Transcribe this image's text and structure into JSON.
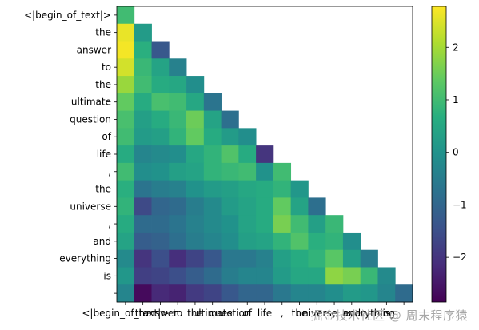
{
  "chart_data": {
    "type": "heatmap",
    "tokens": [
      "<|begin_of_text|>",
      "the",
      "answer",
      "to",
      "the",
      "ultimate",
      "question",
      "of",
      "life",
      ",",
      "the",
      "universe",
      ",",
      "and",
      "everything",
      "is",
      " "
    ],
    "colorbar": {
      "min": -2.85,
      "max": 2.78,
      "ticks": [
        2,
        1,
        0,
        -1,
        -2
      ]
    },
    "colormap": "viridis",
    "grid": false,
    "values": [
      [
        1.0
      ],
      [
        2.6,
        0.2
      ],
      [
        2.7,
        0.7,
        -1.3
      ],
      [
        2.4,
        0.9,
        0.4,
        -0.4
      ],
      [
        1.9,
        1.0,
        0.6,
        0.5,
        -0.1
      ],
      [
        1.4,
        0.6,
        1.1,
        1.0,
        0.5,
        -0.7
      ],
      [
        1.1,
        0.3,
        0.6,
        0.9,
        1.5,
        0.4,
        -0.8
      ],
      [
        1.0,
        0.2,
        0.3,
        0.8,
        1.4,
        0.6,
        0.2,
        -0.1
      ],
      [
        0.6,
        -0.3,
        -0.2,
        -0.1,
        0.5,
        0.8,
        1.2,
        0.6,
        -2.0
      ],
      [
        1.0,
        -0.1,
        0.0,
        0.3,
        0.4,
        0.8,
        0.9,
        1.0,
        0.0,
        1.0
      ],
      [
        0.7,
        -0.7,
        -0.5,
        -0.4,
        0.0,
        0.2,
        0.3,
        0.5,
        0.6,
        0.8,
        0.1
      ],
      [
        0.8,
        -1.6,
        -1.0,
        -0.9,
        -0.5,
        -0.2,
        0.2,
        0.4,
        0.6,
        1.4,
        0.4,
        -0.8
      ],
      [
        0.6,
        -0.9,
        -0.9,
        -0.7,
        -0.4,
        -0.2,
        0.0,
        0.4,
        0.6,
        1.6,
        1.0,
        0.3,
        0.9
      ],
      [
        0.4,
        -1.2,
        -1.1,
        -0.8,
        -0.5,
        -0.3,
        -0.1,
        0.3,
        0.4,
        0.8,
        1.2,
        0.7,
        0.8,
        -0.1
      ],
      [
        -0.2,
        -2.0,
        -1.5,
        -2.1,
        -1.7,
        -1.3,
        -0.6,
        -0.6,
        -0.4,
        0.3,
        0.6,
        0.8,
        1.3,
        0.3,
        -0.5
      ],
      [
        0.1,
        -1.8,
        -1.7,
        -1.5,
        -1.2,
        -0.9,
        -0.5,
        -0.3,
        -0.3,
        0.2,
        0.5,
        0.5,
        1.8,
        1.6,
        0.9,
        -0.2
      ],
      [
        -0.3,
        -2.7,
        -2.2,
        -2.3,
        -1.9,
        -1.7,
        -1.3,
        -1.0,
        -1.0,
        -0.6,
        -0.3,
        -0.3,
        -0.1,
        0.2,
        0.1,
        -0.3,
        -0.9
      ]
    ]
  },
  "watermark": "掘金技术社区 @ 周末程序猿"
}
